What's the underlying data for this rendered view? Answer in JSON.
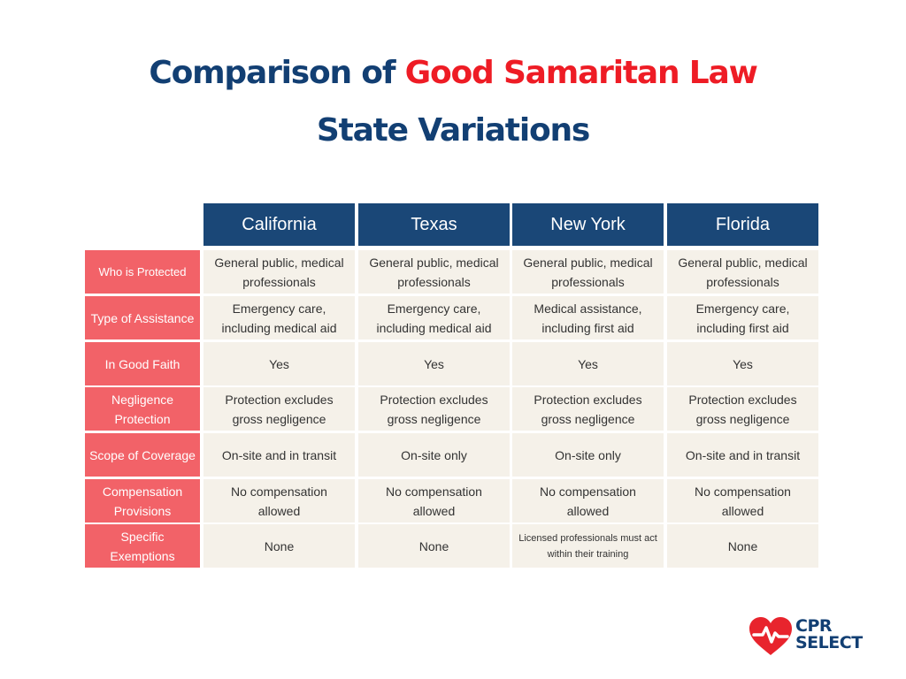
{
  "title": {
    "line1_part1": "Comparison of ",
    "line1_accent": "Good Samaritan Law",
    "line2": "State Variations"
  },
  "table": {
    "columns": [
      "California",
      "Texas",
      "New York",
      "Florida"
    ],
    "rows": [
      {
        "label": "Who is Protected",
        "cells": [
          "General public, medical professionals",
          "General public, medical professionals",
          "General public, medical professionals",
          "General public, medical professionals"
        ]
      },
      {
        "label": "Type of Assistance",
        "cells": [
          "Emergency care, including medical aid",
          "Emergency care, including medical aid",
          "Medical assistance, including first aid",
          "Emergency care, including first aid"
        ]
      },
      {
        "label": "In Good Faith",
        "cells": [
          "Yes",
          "Yes",
          "Yes",
          "Yes"
        ]
      },
      {
        "label": "Negligence Protection",
        "cells": [
          "Protection excludes gross negligence",
          "Protection excludes gross negligence",
          "Protection excludes gross negligence",
          "Protection excludes gross negligence"
        ]
      },
      {
        "label": "Scope of Coverage",
        "cells": [
          "On-site and in transit",
          "On-site only",
          "On-site only",
          "On-site and in transit"
        ]
      },
      {
        "label": "Compensation Provisions",
        "cells": [
          "No compensation allowed",
          "No compensation allowed",
          "No compensation allowed",
          "No compensation allowed"
        ]
      },
      {
        "label": "Specific Exemptions",
        "cells": [
          "None",
          "None",
          "Licensed professionals must act within their training",
          "None"
        ]
      }
    ]
  },
  "logo": {
    "line1": "CPR",
    "line2": "SELECT",
    "heart_color": "#e8242d",
    "text_color": "#123f73"
  },
  "colors": {
    "navy": "#1a4777",
    "red_accent": "#ee1c25",
    "row_header": "#f26268",
    "cell_bg": "#f5f1e9"
  }
}
